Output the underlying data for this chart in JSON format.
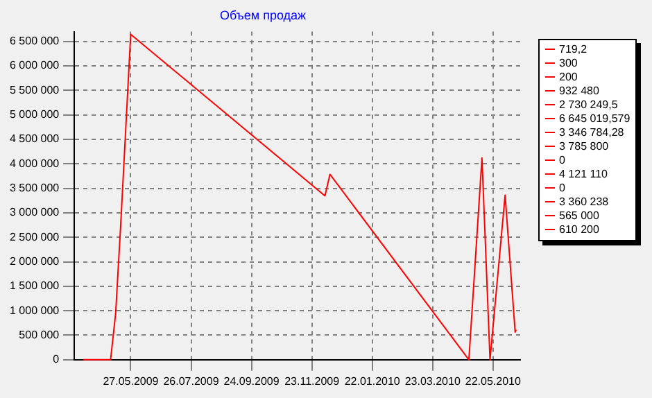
{
  "chart_data": {
    "type": "line",
    "title": "Объем продаж",
    "x": [
      "2009-04-10",
      "2009-04-25",
      "2009-05-07",
      "2009-05-12",
      "2009-05-17",
      "2009-05-27",
      "2009-12-06",
      "2009-12-11",
      "2010-04-28",
      "2010-05-11",
      "2010-05-19",
      "2010-06-03",
      "2010-06-13",
      "2010-06-14"
    ],
    "values": [
      719.2,
      300,
      200,
      932480,
      2730249.5,
      6645019.579,
      3346784.28,
      3785800,
      0,
      4121110,
      0,
      3360238,
      565000,
      610200
    ],
    "annotations": [
      "719,2",
      "300",
      "200",
      "932 480",
      "2 730 249,5",
      "6 645 019,579",
      "3 346 784,28",
      "3 785 800",
      "0",
      "4 121 110",
      "0",
      "3 360 238",
      "565 000",
      "610 200"
    ],
    "color": "#ff0000",
    "xlim": [
      "2009-04-01",
      "2010-06-18"
    ],
    "xticks": [
      {
        "value": "2009-05-27",
        "label": "27.05.2009"
      },
      {
        "value": "2009-07-26",
        "label": "26.07.2009"
      },
      {
        "value": "2009-09-24",
        "label": "24.09.2009"
      },
      {
        "value": "2009-11-23",
        "label": "23.11.2009"
      },
      {
        "value": "2010-01-22",
        "label": "22.01.2010"
      },
      {
        "value": "2010-03-23",
        "label": "23.03.2010"
      },
      {
        "value": "2010-05-22",
        "label": "22.05.2010"
      }
    ],
    "ylim": [
      0,
      6700000
    ],
    "yticks": [
      0,
      {
        "value": 500000,
        "label": "500 000"
      },
      {
        "value": 1000000,
        "label": "1 000 000"
      },
      {
        "value": 1500000,
        "label": "1 500 000"
      },
      {
        "value": 2000000,
        "label": "2 000 000"
      },
      {
        "value": 2500000,
        "label": "2 500 000"
      },
      {
        "value": 3000000,
        "label": "3 000 000"
      },
      {
        "value": 3500000,
        "label": "3 500 000"
      },
      {
        "value": 4000000,
        "label": "4 000 000"
      },
      {
        "value": 4500000,
        "label": "4 500 000"
      },
      {
        "value": 5000000,
        "label": "5 000 000"
      },
      {
        "value": 5500000,
        "label": "5 500 000"
      },
      {
        "value": 6000000,
        "label": "6 000 000"
      },
      {
        "value": 6500000,
        "label": "6 500 000"
      }
    ],
    "grid": true,
    "marker": "none",
    "line_style": "solid"
  }
}
